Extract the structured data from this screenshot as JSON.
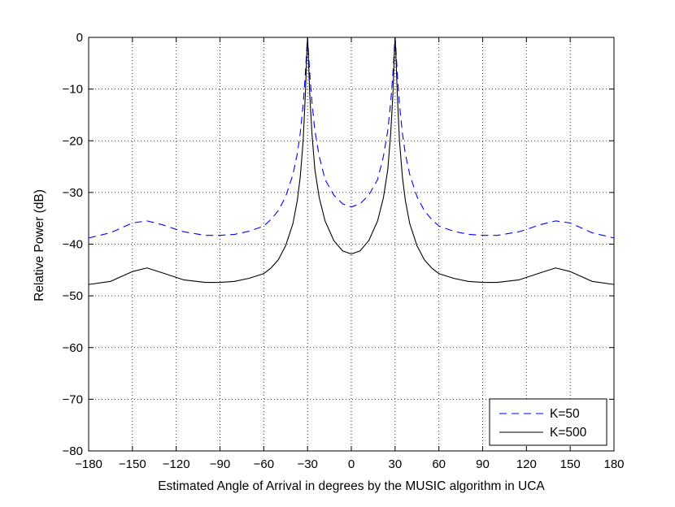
{
  "chart_data": {
    "type": "line",
    "xlabel": "Estimated Angle of Arrival in degrees by the MUSIC algorithm in UCA",
    "ylabel": "Relative Power (dB)",
    "xlim": [
      -180,
      180
    ],
    "ylim": [
      -80,
      0
    ],
    "xticks": [
      -180,
      -150,
      -120,
      -90,
      -60,
      -30,
      0,
      30,
      60,
      90,
      120,
      150,
      180
    ],
    "yticks": [
      0,
      -10,
      -20,
      -30,
      -40,
      -50,
      -60,
      -70,
      -80
    ],
    "xtick_labels": [
      "−180",
      "−150",
      "−120",
      "−90",
      "−60",
      "−30",
      "0",
      "30",
      "60",
      "90",
      "120",
      "150",
      "180"
    ],
    "ytick_labels": [
      "0",
      "−10",
      "−20",
      "−30",
      "−40",
      "−50",
      "−60",
      "−70",
      "−80"
    ],
    "grid": true,
    "legend_position": "bottom-right",
    "series": [
      {
        "name": "K=50",
        "color": "#0000ff",
        "line_style": "dashed",
        "points": [
          [
            -180,
            -38.8
          ],
          [
            -165,
            -37.8
          ],
          [
            -150,
            -35.9
          ],
          [
            -140,
            -35.5
          ],
          [
            -130,
            -36.2
          ],
          [
            -115,
            -37.6
          ],
          [
            -100,
            -38.3
          ],
          [
            -90,
            -38.3
          ],
          [
            -80,
            -38.1
          ],
          [
            -70,
            -37.5
          ],
          [
            -60,
            -36.5
          ],
          [
            -55,
            -35.2
          ],
          [
            -50,
            -33.5
          ],
          [
            -45,
            -30.8
          ],
          [
            -40,
            -26.5
          ],
          [
            -37,
            -22.5
          ],
          [
            -35,
            -18.5
          ],
          [
            -33,
            -13.0
          ],
          [
            -31.5,
            -7.0
          ],
          [
            -30.5,
            -2.0
          ],
          [
            -30,
            0
          ],
          [
            -29.5,
            -2.0
          ],
          [
            -28.5,
            -7.0
          ],
          [
            -27,
            -12.5
          ],
          [
            -25,
            -18.0
          ],
          [
            -22,
            -23.0
          ],
          [
            -18,
            -27.5
          ],
          [
            -12,
            -30.5
          ],
          [
            -6,
            -32.2
          ],
          [
            0,
            -32.8
          ],
          [
            6,
            -32.2
          ],
          [
            12,
            -30.5
          ],
          [
            18,
            -27.5
          ],
          [
            22,
            -23.0
          ],
          [
            25,
            -18.0
          ],
          [
            27,
            -12.5
          ],
          [
            28.5,
            -7.0
          ],
          [
            29.5,
            -2.0
          ],
          [
            30,
            0
          ],
          [
            30.5,
            -2.0
          ],
          [
            31.5,
            -7.0
          ],
          [
            33,
            -13.0
          ],
          [
            35,
            -18.5
          ],
          [
            37,
            -22.5
          ],
          [
            40,
            -26.5
          ],
          [
            45,
            -30.8
          ],
          [
            50,
            -33.5
          ],
          [
            55,
            -35.2
          ],
          [
            60,
            -36.5
          ],
          [
            70,
            -37.5
          ],
          [
            80,
            -38.1
          ],
          [
            90,
            -38.3
          ],
          [
            100,
            -38.3
          ],
          [
            115,
            -37.6
          ],
          [
            130,
            -36.2
          ],
          [
            140,
            -35.5
          ],
          [
            150,
            -35.9
          ],
          [
            165,
            -37.8
          ],
          [
            180,
            -38.8
          ]
        ]
      },
      {
        "name": "K=500",
        "color": "#000000",
        "line_style": "solid",
        "points": [
          [
            -180,
            -47.8
          ],
          [
            -165,
            -47.2
          ],
          [
            -150,
            -45.3
          ],
          [
            -140,
            -44.6
          ],
          [
            -130,
            -45.5
          ],
          [
            -115,
            -46.9
          ],
          [
            -100,
            -47.4
          ],
          [
            -90,
            -47.4
          ],
          [
            -80,
            -47.2
          ],
          [
            -70,
            -46.6
          ],
          [
            -60,
            -45.7
          ],
          [
            -55,
            -44.6
          ],
          [
            -50,
            -43.0
          ],
          [
            -45,
            -40.3
          ],
          [
            -40,
            -36.0
          ],
          [
            -37,
            -31.5
          ],
          [
            -35,
            -27.0
          ],
          [
            -33,
            -20.0
          ],
          [
            -31.5,
            -11.0
          ],
          [
            -30.5,
            -3.0
          ],
          [
            -30,
            0
          ],
          [
            -29.5,
            -3.0
          ],
          [
            -28.5,
            -11.0
          ],
          [
            -27,
            -18.5
          ],
          [
            -25,
            -25.5
          ],
          [
            -22,
            -31.0
          ],
          [
            -18,
            -35.5
          ],
          [
            -12,
            -39.3
          ],
          [
            -6,
            -41.3
          ],
          [
            0,
            -41.9
          ],
          [
            6,
            -41.3
          ],
          [
            12,
            -39.3
          ],
          [
            18,
            -35.5
          ],
          [
            22,
            -31.0
          ],
          [
            25,
            -25.5
          ],
          [
            27,
            -18.5
          ],
          [
            28.5,
            -11.0
          ],
          [
            29.5,
            -3.0
          ],
          [
            30,
            0
          ],
          [
            30.5,
            -3.0
          ],
          [
            31.5,
            -11.0
          ],
          [
            33,
            -20.0
          ],
          [
            35,
            -27.0
          ],
          [
            37,
            -31.5
          ],
          [
            40,
            -36.0
          ],
          [
            45,
            -40.3
          ],
          [
            50,
            -43.0
          ],
          [
            55,
            -44.6
          ],
          [
            60,
            -45.7
          ],
          [
            70,
            -46.6
          ],
          [
            80,
            -47.2
          ],
          [
            90,
            -47.4
          ],
          [
            100,
            -47.4
          ],
          [
            115,
            -46.9
          ],
          [
            130,
            -45.5
          ],
          [
            140,
            -44.6
          ],
          [
            150,
            -45.3
          ],
          [
            165,
            -47.2
          ],
          [
            180,
            -47.8
          ]
        ]
      }
    ]
  }
}
